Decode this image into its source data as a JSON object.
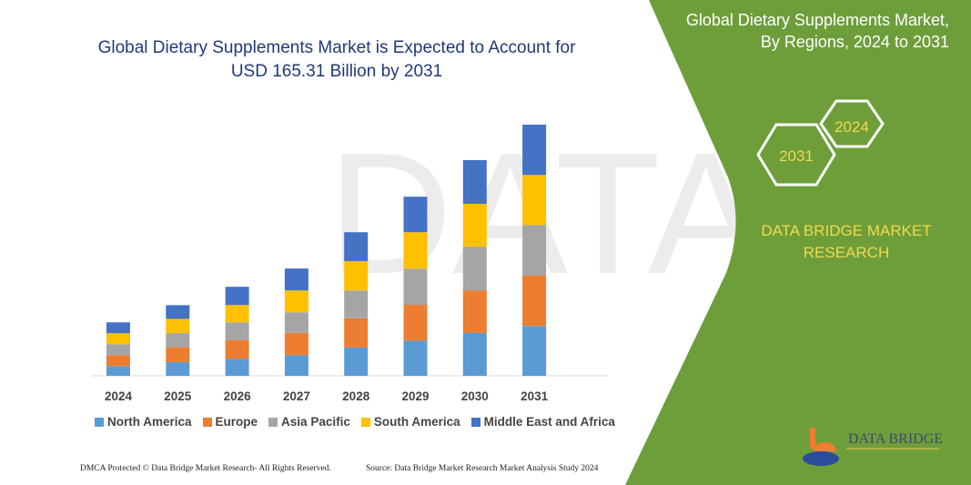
{
  "header": {
    "title_line1": "Global Dietary Supplements Market is Expected to Account for",
    "title_line2": "USD 165.31 Billion by 2031"
  },
  "side": {
    "title_line1": "Global Dietary Supplements Market,",
    "title_line2": "By Regions, 2024 to 2031",
    "hex_start": "2024",
    "hex_end": "2031",
    "brand_line1": "DATA BRIDGE MARKET",
    "brand_line2": "RESEARCH",
    "logo_text": "DATA BRIDGE"
  },
  "footer": {
    "left": "DMCA Protected © Data Bridge Market Research- All Rights Reserved.",
    "right": "Source: Data Bridge Market Research  Market Analysis Study 2024"
  },
  "colors": {
    "green": "#6e9e3a",
    "title": "#1f3a78",
    "accent_text": "#f2d94e"
  },
  "chart_data": {
    "type": "bar",
    "stacked": true,
    "title": "Global Dietary Supplements Market is Expected to Account for USD 165.31 Billion by 2031",
    "xlabel": "",
    "ylabel": "",
    "y_axis_shown": false,
    "grid": false,
    "legend_position": "bottom",
    "categories": [
      "2024",
      "2025",
      "2026",
      "2027",
      "2028",
      "2029",
      "2030",
      "2031"
    ],
    "series": [
      {
        "name": "North America",
        "color": "#5b9bd5",
        "values": [
          6.4,
          9.0,
          11.2,
          13.6,
          18.6,
          23.2,
          28.2,
          32.8
        ]
      },
      {
        "name": "Europe",
        "color": "#ed7d31",
        "values": [
          7.2,
          9.8,
          12.2,
          14.6,
          19.2,
          23.5,
          28.0,
          33.1
        ]
      },
      {
        "name": "Asia Pacific",
        "color": "#a5a5a5",
        "values": [
          7.2,
          9.3,
          11.8,
          13.6,
          18.4,
          23.8,
          28.8,
          33.4
        ]
      },
      {
        "name": "South America",
        "color": "#ffc000",
        "values": [
          7.2,
          9.4,
          11.4,
          14.4,
          19.3,
          24.0,
          28.2,
          32.9
        ]
      },
      {
        "name": "Middle East and Africa",
        "color": "#4472c4",
        "values": [
          7.2,
          9.0,
          12.0,
          14.4,
          19.0,
          23.4,
          28.8,
          33.1
        ]
      }
    ]
  }
}
